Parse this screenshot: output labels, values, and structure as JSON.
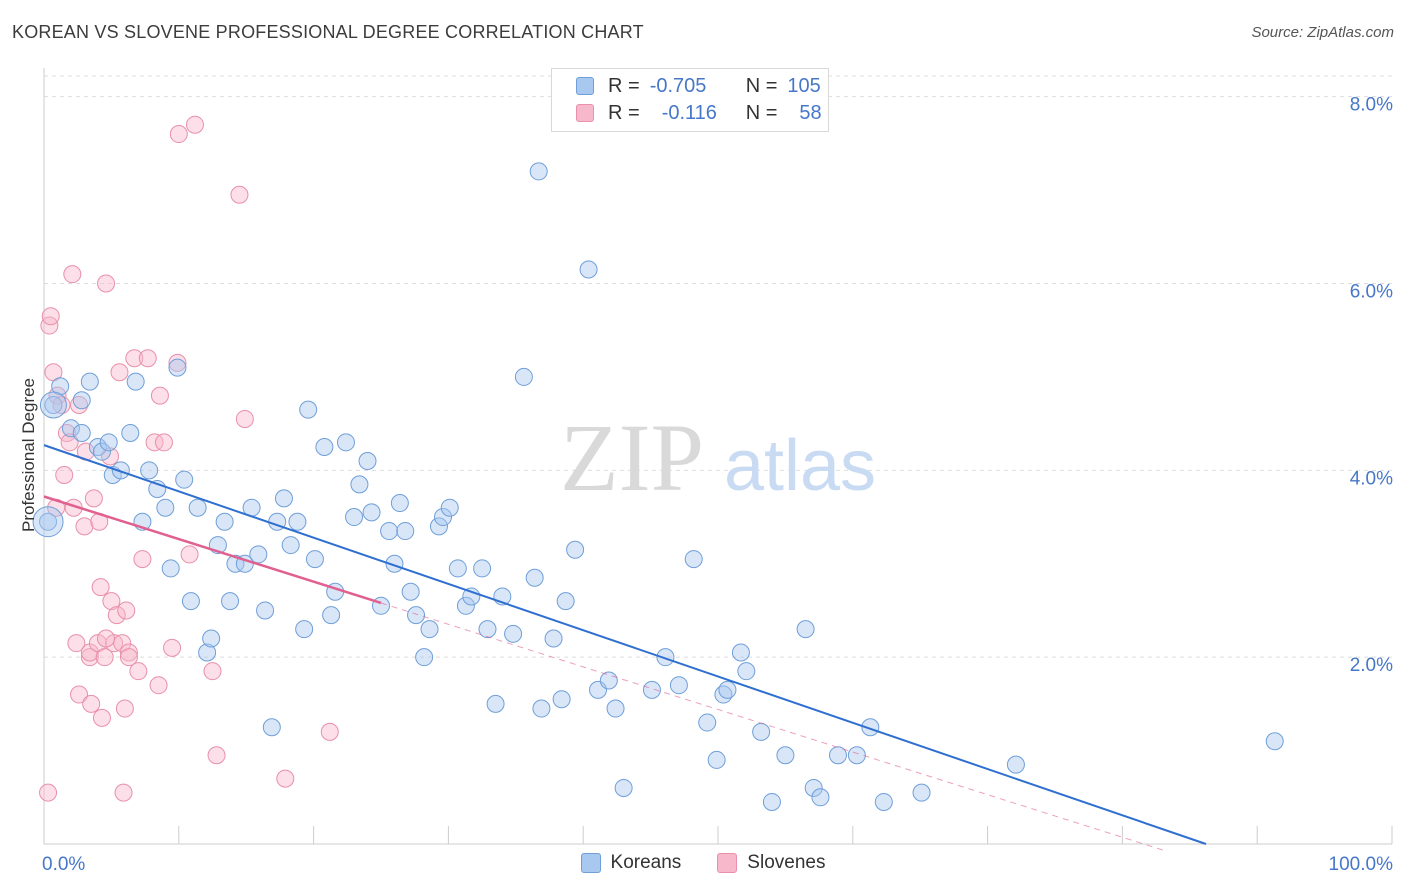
{
  "title": "KOREAN VS SLOVENE PROFESSIONAL DEGREE CORRELATION CHART",
  "source": "Source: ZipAtlas.com",
  "watermark": {
    "zip": "ZIP",
    "atlas": "atlas"
  },
  "legend_top": [
    {
      "r_label": "R =",
      "r_value": "-0.705",
      "n_label": "N =",
      "n_value": "105"
    },
    {
      "r_label": "R =",
      "r_value": "-0.116",
      "n_label": "N =",
      "n_value": "58"
    }
  ],
  "colors": {
    "koreans_fill": "#a8c8f0",
    "koreans_stroke": "#6f9fd8",
    "koreans_line": "#2f6fd0",
    "slovenes_fill": "#f8b8cc",
    "slovenes_stroke": "#e890aa",
    "slovenes_line": "#e06090",
    "grid": "#dddddd",
    "tick_text": "#4677c9"
  },
  "chart_data": {
    "type": "scatter",
    "title": "KOREAN VS SLOVENE PROFESSIONAL DEGREE CORRELATION CHART",
    "xlabel": "",
    "ylabel": "Professional Degree",
    "xlim": [
      0,
      100
    ],
    "ylim": [
      0,
      8.2
    ],
    "x_tick_labels": [
      "0.0%",
      "100.0%"
    ],
    "y_ticks": [
      2,
      4,
      6,
      8
    ],
    "y_tick_labels": [
      "2.0%",
      "4.0%",
      "6.0%",
      "8.0%"
    ],
    "grid": true,
    "legend_position": "bottom",
    "series": [
      {
        "name": "Koreans",
        "trend": {
          "x": [
            0,
            86.2
          ],
          "y": [
            4.27,
            0
          ]
        },
        "points": [
          [
            0.3,
            3.45
          ],
          [
            0.7,
            4.7
          ],
          [
            1.2,
            4.9
          ],
          [
            2.0,
            4.45
          ],
          [
            2.8,
            4.4
          ],
          [
            2.8,
            4.75
          ],
          [
            3.4,
            4.95
          ],
          [
            4.0,
            4.25
          ],
          [
            4.3,
            4.2
          ],
          [
            4.8,
            4.3
          ],
          [
            5.1,
            3.95
          ],
          [
            5.7,
            4.0
          ],
          [
            6.4,
            4.4
          ],
          [
            6.8,
            4.95
          ],
          [
            7.3,
            3.45
          ],
          [
            7.8,
            4.0
          ],
          [
            8.4,
            3.8
          ],
          [
            9.0,
            3.6
          ],
          [
            9.4,
            2.95
          ],
          [
            9.9,
            5.1
          ],
          [
            10.4,
            3.9
          ],
          [
            10.9,
            2.6
          ],
          [
            11.4,
            3.6
          ],
          [
            12.1,
            2.05
          ],
          [
            12.4,
            2.2
          ],
          [
            12.9,
            3.2
          ],
          [
            13.4,
            3.45
          ],
          [
            13.8,
            2.6
          ],
          [
            14.2,
            3.0
          ],
          [
            14.9,
            3.0
          ],
          [
            15.4,
            3.6
          ],
          [
            15.9,
            3.1
          ],
          [
            16.4,
            2.5
          ],
          [
            16.9,
            1.25
          ],
          [
            17.3,
            3.45
          ],
          [
            17.8,
            3.7
          ],
          [
            18.3,
            3.2
          ],
          [
            18.8,
            3.45
          ],
          [
            19.3,
            2.3
          ],
          [
            19.6,
            4.65
          ],
          [
            20.1,
            3.05
          ],
          [
            20.8,
            4.25
          ],
          [
            21.3,
            2.45
          ],
          [
            21.6,
            2.7
          ],
          [
            22.4,
            4.3
          ],
          [
            23.0,
            3.5
          ],
          [
            23.4,
            3.85
          ],
          [
            24.0,
            4.1
          ],
          [
            24.3,
            3.55
          ],
          [
            25.0,
            2.55
          ],
          [
            25.6,
            3.35
          ],
          [
            26.0,
            3.0
          ],
          [
            26.4,
            3.65
          ],
          [
            26.8,
            3.35
          ],
          [
            27.2,
            2.7
          ],
          [
            27.6,
            2.45
          ],
          [
            28.2,
            2.0
          ],
          [
            28.6,
            2.3
          ],
          [
            29.3,
            3.4
          ],
          [
            29.6,
            3.5
          ],
          [
            30.1,
            3.6
          ],
          [
            30.7,
            2.95
          ],
          [
            31.3,
            2.55
          ],
          [
            31.7,
            2.65
          ],
          [
            32.5,
            2.95
          ],
          [
            32.9,
            2.3
          ],
          [
            33.5,
            1.5
          ],
          [
            34.0,
            2.65
          ],
          [
            34.8,
            2.25
          ],
          [
            35.6,
            5.0
          ],
          [
            36.4,
            2.85
          ],
          [
            36.7,
            7.2
          ],
          [
            36.9,
            1.45
          ],
          [
            37.8,
            2.2
          ],
          [
            38.4,
            1.55
          ],
          [
            38.7,
            2.6
          ],
          [
            39.4,
            3.15
          ],
          [
            40.4,
            6.15
          ],
          [
            41.1,
            1.65
          ],
          [
            41.9,
            1.75
          ],
          [
            42.4,
            1.45
          ],
          [
            43.0,
            0.6
          ],
          [
            45.1,
            1.65
          ],
          [
            46.1,
            2.0
          ],
          [
            47.1,
            1.7
          ],
          [
            48.2,
            3.05
          ],
          [
            49.2,
            1.3
          ],
          [
            49.9,
            0.9
          ],
          [
            50.4,
            1.6
          ],
          [
            50.7,
            1.65
          ],
          [
            51.7,
            2.05
          ],
          [
            52.1,
            1.85
          ],
          [
            53.2,
            1.2
          ],
          [
            54.0,
            0.45
          ],
          [
            55.0,
            0.95
          ],
          [
            56.5,
            2.3
          ],
          [
            57.1,
            0.6
          ],
          [
            57.6,
            0.5
          ],
          [
            58.9,
            0.95
          ],
          [
            60.3,
            0.95
          ],
          [
            61.3,
            1.25
          ],
          [
            62.3,
            0.45
          ],
          [
            65.1,
            0.55
          ],
          [
            72.1,
            0.85
          ],
          [
            91.3,
            1.1
          ]
        ]
      },
      {
        "name": "Slovenes",
        "trend": {
          "x": [
            0,
            25.0
          ],
          "y": [
            3.72,
            2.58
          ]
        },
        "points": [
          [
            0.4,
            5.55
          ],
          [
            0.5,
            5.65
          ],
          [
            0.7,
            5.05
          ],
          [
            0.9,
            3.6
          ],
          [
            1.0,
            4.8
          ],
          [
            1.3,
            4.7
          ],
          [
            1.5,
            3.95
          ],
          [
            1.7,
            4.4
          ],
          [
            1.9,
            4.3
          ],
          [
            2.1,
            6.1
          ],
          [
            2.2,
            3.6
          ],
          [
            2.4,
            2.15
          ],
          [
            2.6,
            4.7
          ],
          [
            2.6,
            1.6
          ],
          [
            3.0,
            3.4
          ],
          [
            3.1,
            4.2
          ],
          [
            3.4,
            2.0
          ],
          [
            3.4,
            2.05
          ],
          [
            3.5,
            1.5
          ],
          [
            3.7,
            3.7
          ],
          [
            4.0,
            2.15
          ],
          [
            4.1,
            3.45
          ],
          [
            4.2,
            2.75
          ],
          [
            4.3,
            1.35
          ],
          [
            4.5,
            2.0
          ],
          [
            4.6,
            6.0
          ],
          [
            4.9,
            4.15
          ],
          [
            5.0,
            2.6
          ],
          [
            5.2,
            2.15
          ],
          [
            5.4,
            2.45
          ],
          [
            5.6,
            5.05
          ],
          [
            5.8,
            2.15
          ],
          [
            6.0,
            1.45
          ],
          [
            6.1,
            2.5
          ],
          [
            6.3,
            2.05
          ],
          [
            6.3,
            2.0
          ],
          [
            6.7,
            5.2
          ],
          [
            7.0,
            1.85
          ],
          [
            7.3,
            3.05
          ],
          [
            7.7,
            5.2
          ],
          [
            8.2,
            4.3
          ],
          [
            8.5,
            1.7
          ],
          [
            8.6,
            4.8
          ],
          [
            8.9,
            4.3
          ],
          [
            9.5,
            2.1
          ],
          [
            9.9,
            5.15
          ],
          [
            10.0,
            7.6
          ],
          [
            10.8,
            3.1
          ],
          [
            11.2,
            7.7
          ],
          [
            12.5,
            1.85
          ],
          [
            12.8,
            0.95
          ],
          [
            14.5,
            6.95
          ],
          [
            14.9,
            4.55
          ],
          [
            17.9,
            0.7
          ],
          [
            21.2,
            1.2
          ],
          [
            0.3,
            0.55
          ],
          [
            5.9,
            0.55
          ],
          [
            4.6,
            2.2
          ]
        ]
      }
    ]
  },
  "legend_bottom": [
    {
      "name": "Koreans"
    },
    {
      "name": "Slovenes"
    }
  ]
}
